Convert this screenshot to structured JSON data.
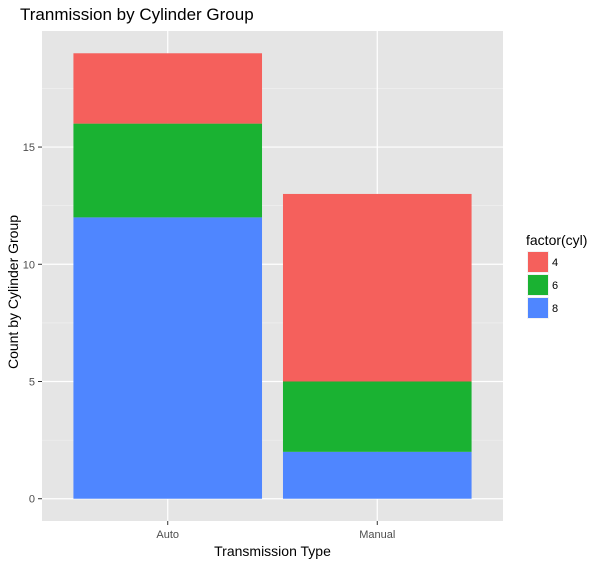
{
  "chart_data": {
    "type": "bar",
    "stacked": true,
    "title": "Tranmission by Cylinder Group",
    "xlabel": "Transmission Type",
    "ylabel": "Count by Cylinder Group",
    "categories": [
      "Auto",
      "Manual"
    ],
    "series": [
      {
        "name": "8",
        "color": "#4F86FF",
        "values": [
          12,
          2
        ]
      },
      {
        "name": "6",
        "color": "#1AB232",
        "values": [
          4,
          3
        ]
      },
      {
        "name": "4",
        "color": "#F5605C",
        "values": [
          3,
          8
        ]
      }
    ],
    "ylim": [
      -0.95,
      19.95
    ],
    "yticks": [
      0,
      5,
      10,
      15
    ],
    "grid": true,
    "legend": {
      "title": "factor(cyl)",
      "position": "right",
      "items": [
        {
          "label": "4",
          "color": "#F5605C"
        },
        {
          "label": "6",
          "color": "#1AB232"
        },
        {
          "label": "8",
          "color": "#4F86FF"
        }
      ]
    }
  }
}
